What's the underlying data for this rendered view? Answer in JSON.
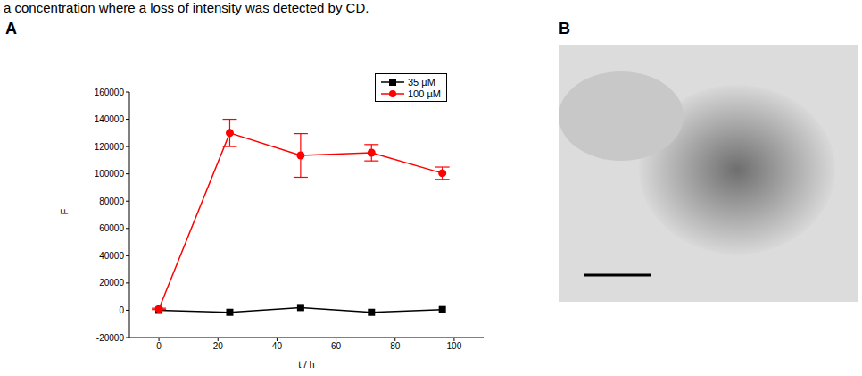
{
  "caption": "a concentration where a loss of intensity was detected by CD.",
  "panels": [
    "A",
    "B"
  ],
  "chart_data": {
    "type": "line",
    "x_label": "t / h",
    "y_label": "F",
    "xlim": [
      -10,
      110
    ],
    "xticks": [
      0,
      20,
      40,
      60,
      80,
      100
    ],
    "ylim": [
      -20000,
      160000
    ],
    "yticks": [
      -20000,
      0,
      20000,
      40000,
      60000,
      80000,
      100000,
      120000,
      140000,
      160000
    ],
    "legend": "upper right",
    "series": [
      {
        "name": "35 µM",
        "color": "#000000",
        "marker": "square",
        "x": [
          0,
          24,
          48,
          72,
          96
        ],
        "values": [
          0,
          -1500,
          2000,
          -1500,
          500
        ]
      },
      {
        "name": "100 µM",
        "color": "#ff0000",
        "marker": "circle",
        "x": [
          0,
          24,
          48,
          72,
          96
        ],
        "values": [
          1000,
          130000,
          113500,
          115500,
          100500
        ],
        "errors": [
          500,
          10000,
          16000,
          6000,
          4500
        ]
      }
    ]
  }
}
